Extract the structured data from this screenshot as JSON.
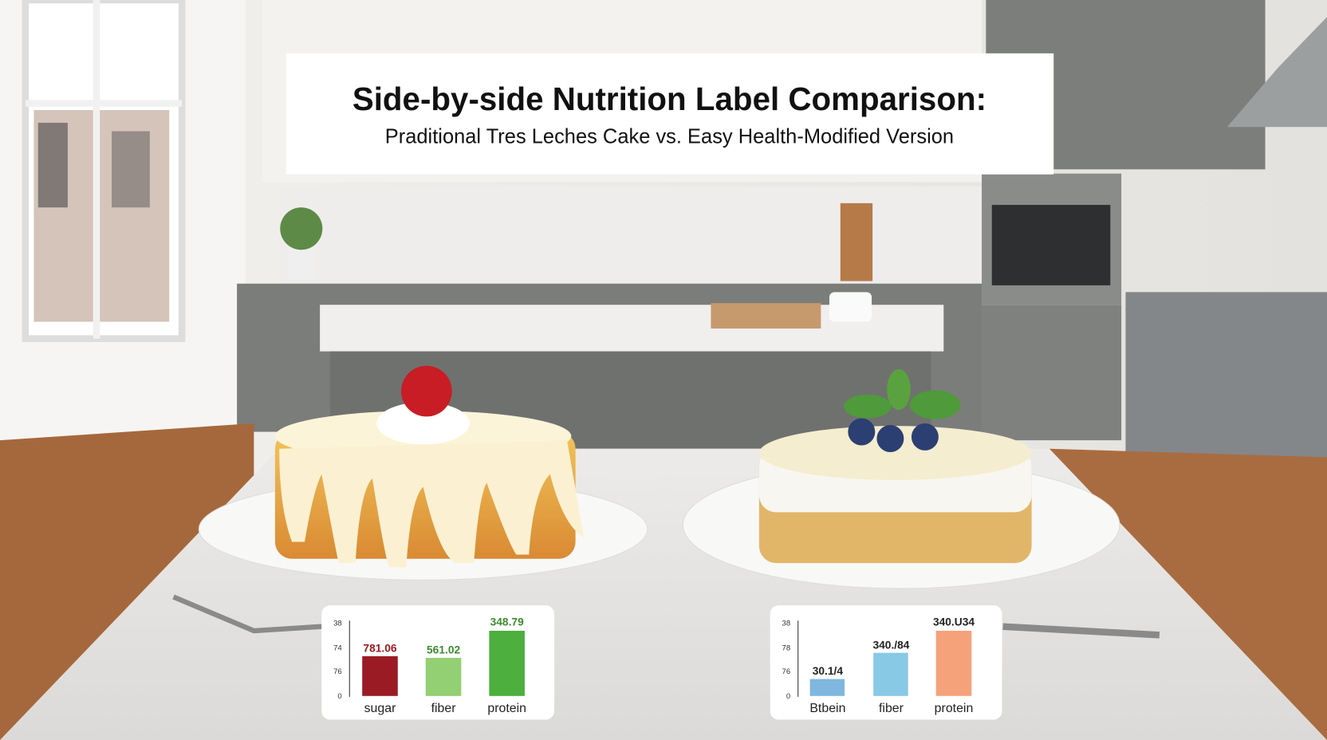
{
  "title": {
    "heading": "Side-by-side Nutrition Label Comparison:",
    "subheading": "Praditional Tres Leches Cake vs. Easy Health-Modified Version"
  },
  "panels": [
    {
      "axis_labels": [
        "38",
        "74",
        "76",
        "0"
      ],
      "bars": [
        {
          "name": "sugar",
          "label": "781.06"
        },
        {
          "name": "fiber",
          "label": "561.02"
        },
        {
          "name": "protein",
          "label": "348.79"
        }
      ]
    },
    {
      "axis_labels": [
        "38",
        "78",
        "76",
        "0"
      ],
      "bars": [
        {
          "name": "Btbein",
          "label": "30.1/4"
        },
        {
          "name": "fiber",
          "label": "340./84"
        },
        {
          "name": "protein",
          "label": "340.U34"
        }
      ]
    }
  ]
}
